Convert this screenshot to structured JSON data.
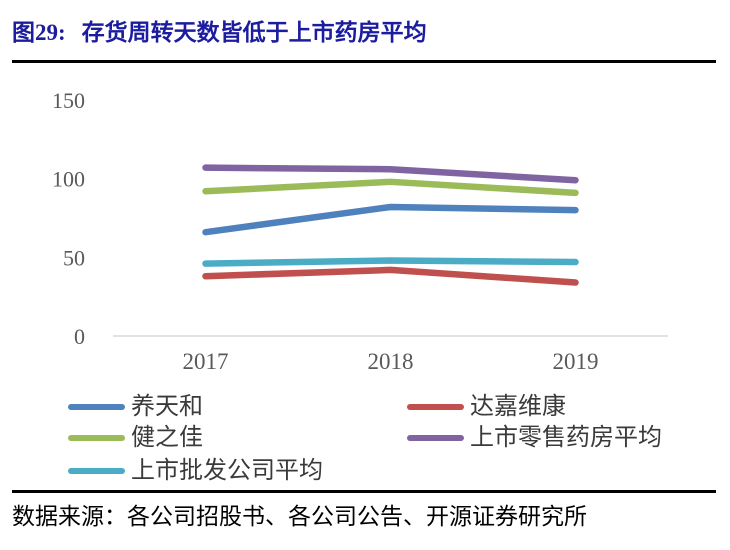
{
  "header": {
    "figure_label": "图29:",
    "title": "存货周转天数皆低于上市药房平均",
    "title_color": "#1c1c9e"
  },
  "chart_data": {
    "type": "line",
    "title": "",
    "categories": [
      "2017",
      "2018",
      "2019"
    ],
    "series": [
      {
        "name": "养天和",
        "color": "#4F81BD",
        "values": [
          66,
          82,
          80
        ]
      },
      {
        "name": "达嘉维康",
        "color": "#C0504D",
        "values": [
          38,
          42,
          34
        ]
      },
      {
        "name": "健之佳",
        "color": "#9BBB59",
        "values": [
          92,
          98,
          91
        ]
      },
      {
        "name": "上市零售药房平均",
        "color": "#8064A2",
        "values": [
          107,
          106,
          99
        ]
      },
      {
        "name": "上市批发公司平均",
        "color": "#4BACC6",
        "values": [
          46,
          48,
          47
        ]
      }
    ],
    "xlabel": "",
    "ylabel": "",
    "ylim": [
      0,
      150
    ],
    "yticks": [
      0,
      50,
      100,
      150
    ],
    "grid": false,
    "legend_position": "bottom",
    "axis_color": "#d9d9d9",
    "tick_color": "#595959"
  },
  "footer": {
    "source_label": "数据来源：",
    "source_text": "各公司招股书、各公司公告、开源证券研究所"
  }
}
